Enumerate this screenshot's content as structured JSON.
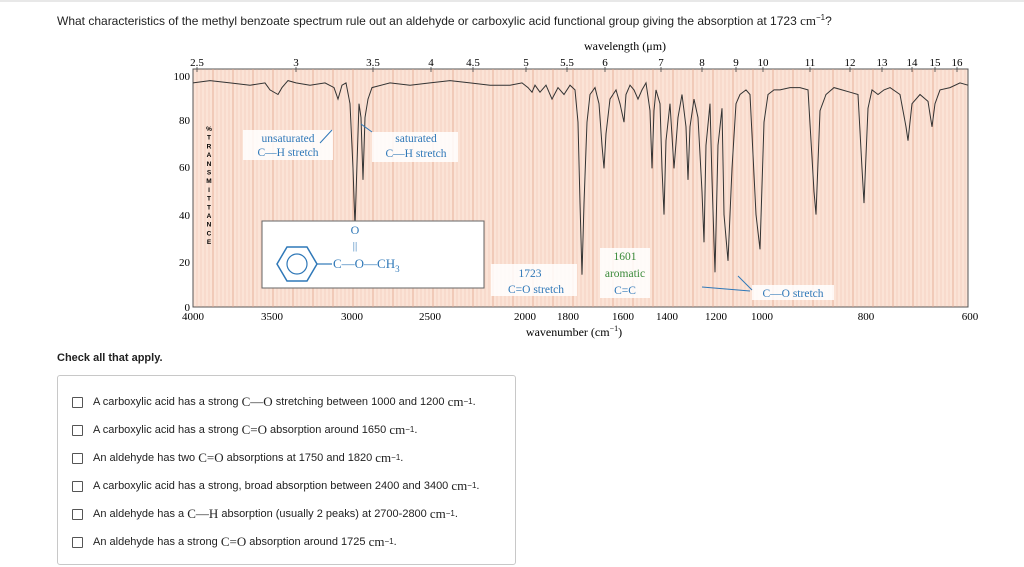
{
  "question": {
    "text": "What characteristics of the methyl benzoate spectrum rule out an aldehyde or carboxylic acid functional group giving the absorption at 1723",
    "unit": "cm",
    "unit_exp": "−1",
    "end": "?"
  },
  "instructions": "Check all that apply.",
  "spectrum": {
    "wavelength_title": "wavelength (μm)",
    "wavenumber_title": "wavenumber (cm",
    "wavenumber_title_exp": "−1",
    "wavenumber_title_end": ")",
    "yaxis_vertical_label": "%TRANSMITTANCE",
    "y_ticks": [
      "100",
      "80",
      "60",
      "40",
      "20",
      "0"
    ],
    "top_ticks": [
      "2.5",
      "3",
      "3.5",
      "4",
      "4.5",
      "5",
      "5.5",
      "6",
      "7",
      "8",
      "9",
      "10",
      "11",
      "12",
      "13",
      "14",
      "15",
      "16"
    ],
    "bottom_ticks": [
      "4000",
      "3500",
      "3000",
      "2500",
      "2000",
      "1800",
      "1600",
      "1400",
      "1200",
      "1000",
      "800",
      "600"
    ],
    "annotations": {
      "unsat_1": "unsaturated",
      "unsat_2": "C—H stretch",
      "sat_1": "saturated",
      "sat_2": "C—H stretch",
      "co_1": "1723",
      "co_2": "C=O stretch",
      "cc_1": "1601",
      "cc_2": "aromatic",
      "cc_3": "C=C",
      "cost": "C—O stretch"
    },
    "structure": {
      "oxygen": "O",
      "double_bond": "||",
      "chain": "C—O—CH",
      "chain_sub": "3"
    },
    "colors": {
      "grid_fill": "#fbe3d6",
      "grid_line": "#e3a58e",
      "trace": "#333333",
      "annotation": "#2f78b8",
      "green": "#3a8a3a"
    }
  },
  "options": [
    {
      "pre": "A carboxylic acid has a strong",
      "formula": "C—O",
      "post": "stretching between 1000 and 1200",
      "unit": "cm",
      "exp": "−1",
      "end": "."
    },
    {
      "pre": "A carboxylic acid has a strong",
      "formula": "C=O",
      "post": "absorption around 1650",
      "unit": "cm",
      "exp": "−1",
      "end": "."
    },
    {
      "pre": "An aldehyde has two",
      "formula": "C=O",
      "post": "absorptions at 1750 and 1820",
      "unit": "cm",
      "exp": "−1",
      "end": "."
    },
    {
      "pre": "A carboxylic acid has a strong, broad absorption between 2400 and 3400",
      "formula": "",
      "post": "",
      "unit": "cm",
      "exp": "−1",
      "end": "."
    },
    {
      "pre": "An aldehyde has a",
      "formula": "C—H",
      "post": "absorption (usually 2 peaks) at 2700-2800",
      "unit": "cm",
      "exp": "−1",
      "end": "."
    },
    {
      "pre": "An aldehyde has a strong",
      "formula": "C=O",
      "post": "absorption around 1725",
      "unit": "cm",
      "exp": "−1",
      "end": "."
    }
  ]
}
